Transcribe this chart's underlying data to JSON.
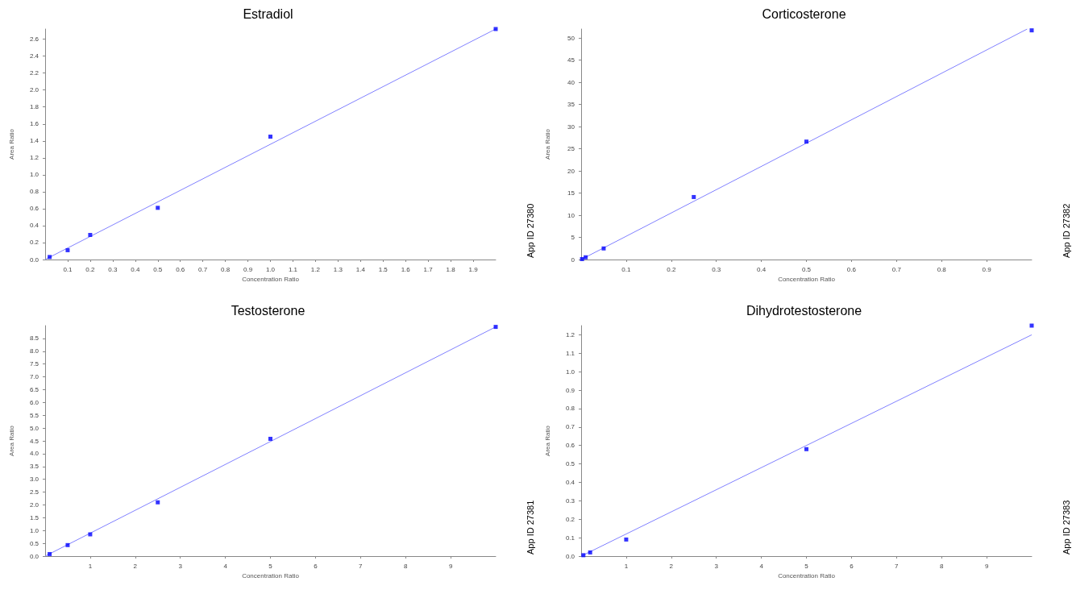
{
  "chart_data": [
    {
      "type": "scatter",
      "title": "Estradiol",
      "xlabel": "Concentration Ratio",
      "ylabel": "Area Ratio",
      "annotations": [
        "App ID 27380"
      ],
      "grid": false,
      "xlim": [
        0,
        2.0
      ],
      "xticks": [
        0.1,
        0.2,
        0.3,
        0.4,
        0.5,
        0.6,
        0.7,
        0.8,
        0.9,
        {
          "value": 1,
          "label": "1.0"
        },
        1.1,
        1.2,
        1.3,
        1.4,
        1.5,
        1.6,
        1.7,
        1.8,
        1.9
      ],
      "ylim": [
        0,
        2.72
      ],
      "yticks": [
        {
          "value": 0,
          "label": "0.0"
        },
        0.2,
        0.4,
        0.6,
        0.8,
        {
          "value": 1,
          "label": "1.0"
        },
        1.2,
        1.4,
        1.6,
        1.8,
        {
          "value": 2,
          "label": "2.0"
        },
        2.2,
        2.4,
        2.6
      ],
      "series": [
        {
          "marker": "square",
          "color": "#0000ff",
          "x": [
            0.02,
            0.1,
            0.2,
            0.5,
            1.0,
            2.0
          ],
          "values": [
            0.03,
            0.11,
            0.29,
            0.61,
            1.45,
            2.72
          ]
        },
        {
          "type": "line",
          "marker": "none",
          "color": "#8080ff",
          "x": [
            0,
            2.0
          ],
          "values": [
            0,
            2.72
          ]
        }
      ]
    },
    {
      "type": "scatter",
      "title": "Corticosterone",
      "xlabel": "Concentration Ratio",
      "ylabel": "Area Ratio",
      "annotations": [
        "App ID 27382"
      ],
      "grid": false,
      "xlim": [
        0,
        1.0
      ],
      "xticks": [
        0.1,
        0.2,
        0.3,
        0.4,
        0.5,
        0.6,
        0.7,
        0.8,
        0.9
      ],
      "ylim": [
        0,
        52
      ],
      "yticks": [
        0,
        5,
        10,
        15,
        20,
        25,
        30,
        35,
        40,
        45,
        50
      ],
      "series": [
        {
          "marker": "square",
          "color": "#0000ff",
          "x": [
            0.002,
            0.01,
            0.05,
            0.25,
            0.5,
            1.0
          ],
          "values": [
            0.1,
            0.5,
            2.5,
            14.1,
            26.6,
            51.7
          ]
        },
        {
          "type": "line",
          "marker": "none",
          "color": "#8080ff",
          "x": [
            0,
            0.99
          ],
          "values": [
            0,
            52
          ]
        }
      ]
    },
    {
      "type": "scatter",
      "title": "Testosterone",
      "xlabel": "Concentration Ratio",
      "ylabel": "Area Ratio",
      "annotations": [
        "App ID 27381"
      ],
      "grid": false,
      "xlim": [
        0,
        10
      ],
      "xticks": [
        1,
        2,
        3,
        4,
        5,
        6,
        7,
        8,
        9
      ],
      "ylim": [
        0,
        9
      ],
      "yticks": [
        {
          "value": 0,
          "label": "0.0"
        },
        0.5,
        {
          "value": 1,
          "label": "1.0"
        },
        1.5,
        {
          "value": 2,
          "label": "2.0"
        },
        2.5,
        {
          "value": 3,
          "label": "3.0"
        },
        3.5,
        {
          "value": 4,
          "label": "4.0"
        },
        4.5,
        {
          "value": 5,
          "label": "5.0"
        },
        5.5,
        {
          "value": 6,
          "label": "6.0"
        },
        6.5,
        {
          "value": 7,
          "label": "7.0"
        },
        7.5,
        {
          "value": 8,
          "label": "8.0"
        },
        8.5
      ],
      "series": [
        {
          "marker": "square",
          "color": "#0000ff",
          "x": [
            0.1,
            0.5,
            1,
            2.5,
            5,
            10
          ],
          "values": [
            0.08,
            0.43,
            0.85,
            2.1,
            4.58,
            8.95
          ]
        },
        {
          "type": "line",
          "marker": "none",
          "color": "#8080ff",
          "x": [
            0,
            10
          ],
          "values": [
            0,
            8.95
          ]
        }
      ]
    },
    {
      "type": "scatter",
      "title": "Dihydrotestosterone",
      "xlabel": "Concentration Ratio",
      "ylabel": "Area Ratio",
      "annotations": [
        "App ID 27383"
      ],
      "grid": false,
      "xlim": [
        0,
        10
      ],
      "xticks": [
        1,
        2,
        3,
        4,
        5,
        6,
        7,
        8,
        9
      ],
      "ylim": [
        0,
        1.25
      ],
      "yticks": [
        {
          "value": 0,
          "label": "0.0"
        },
        0.1,
        0.2,
        0.3,
        0.4,
        0.5,
        0.6,
        0.7,
        0.8,
        0.9,
        {
          "value": 1,
          "label": "1.0"
        },
        1.1,
        1.2
      ],
      "series": [
        {
          "marker": "square",
          "color": "#0000ff",
          "x": [
            0.05,
            0.2,
            1,
            5,
            10
          ],
          "values": [
            0.005,
            0.02,
            0.09,
            0.58,
            1.25
          ]
        },
        {
          "type": "line",
          "marker": "none",
          "color": "#8080ff",
          "x": [
            0,
            10
          ],
          "values": [
            0,
            1.2
          ]
        }
      ]
    }
  ]
}
